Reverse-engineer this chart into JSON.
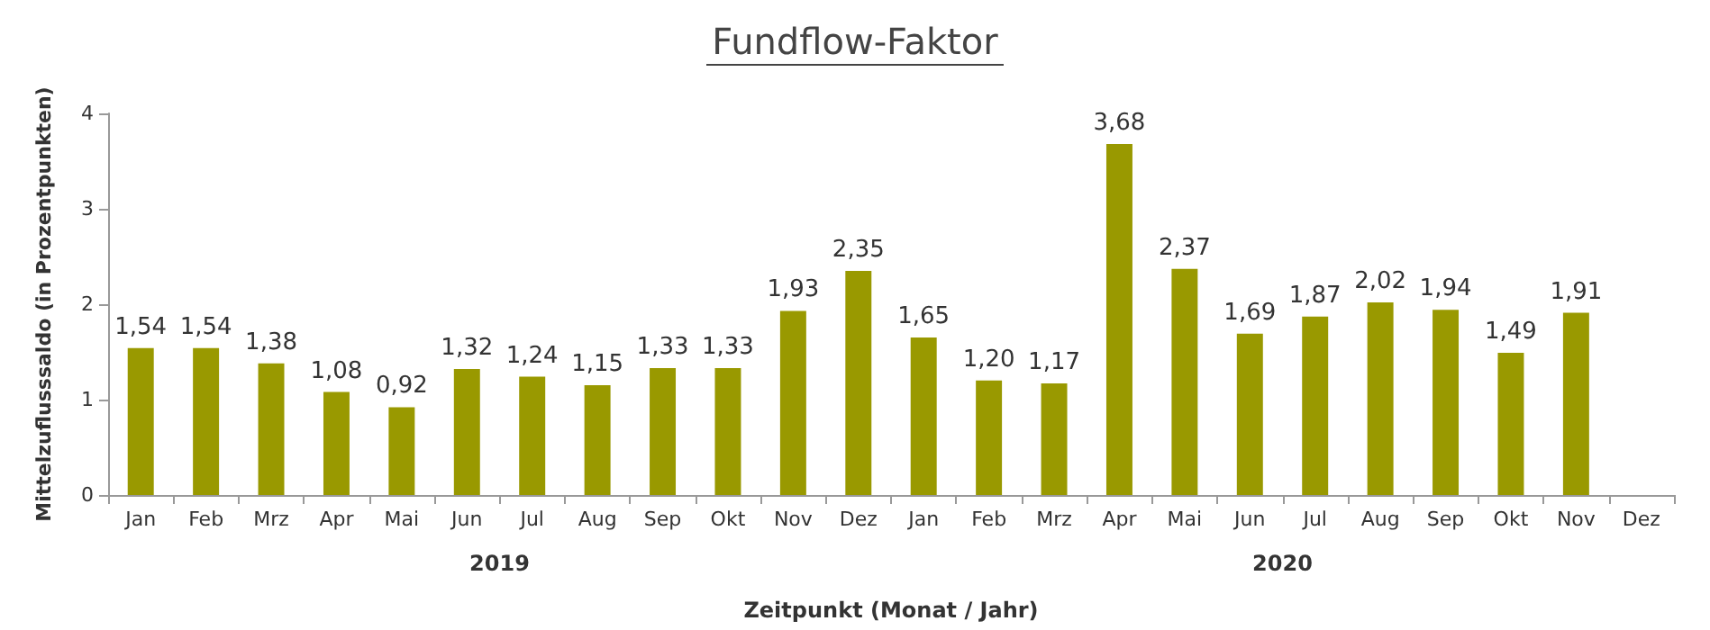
{
  "chart_data": {
    "type": "bar",
    "title": "Fundflow-Faktor",
    "xlabel": "Zeitpunkt (Monat / Jahr)",
    "ylabel": "Mittelzuflusssaldo (in Prozentpunkten)",
    "categories": [
      "Jan",
      "Feb",
      "Mrz",
      "Apr",
      "Mai",
      "Jun",
      "Jul",
      "Aug",
      "Sep",
      "Okt",
      "Nov",
      "Dez",
      "Jan",
      "Feb",
      "Mrz",
      "Apr",
      "Mai",
      "Jun",
      "Jul",
      "Aug",
      "Sep",
      "Okt",
      "Nov",
      "Dez"
    ],
    "values": [
      1.54,
      1.54,
      1.38,
      1.08,
      0.92,
      1.32,
      1.24,
      1.15,
      1.33,
      1.33,
      1.93,
      2.35,
      1.65,
      1.2,
      1.17,
      3.68,
      2.37,
      1.69,
      1.87,
      2.02,
      1.94,
      1.49,
      1.91,
      null
    ],
    "value_labels": [
      "1,54",
      "1,54",
      "1,38",
      "1,08",
      "0,92",
      "1,32",
      "1,24",
      "1,15",
      "1,33",
      "1,33",
      "1,93",
      "2,35",
      "1,65",
      "1,20",
      "1,17",
      "3,68",
      "2,37",
      "1,69",
      "1,87",
      "2,02",
      "1,94",
      "1,49",
      "1,91",
      null
    ],
    "color": "#999900",
    "ylim": [
      0,
      4
    ],
    "yticks": [
      0,
      1,
      2,
      3,
      4
    ],
    "annotations": [
      "2019",
      "2020"
    ]
  }
}
